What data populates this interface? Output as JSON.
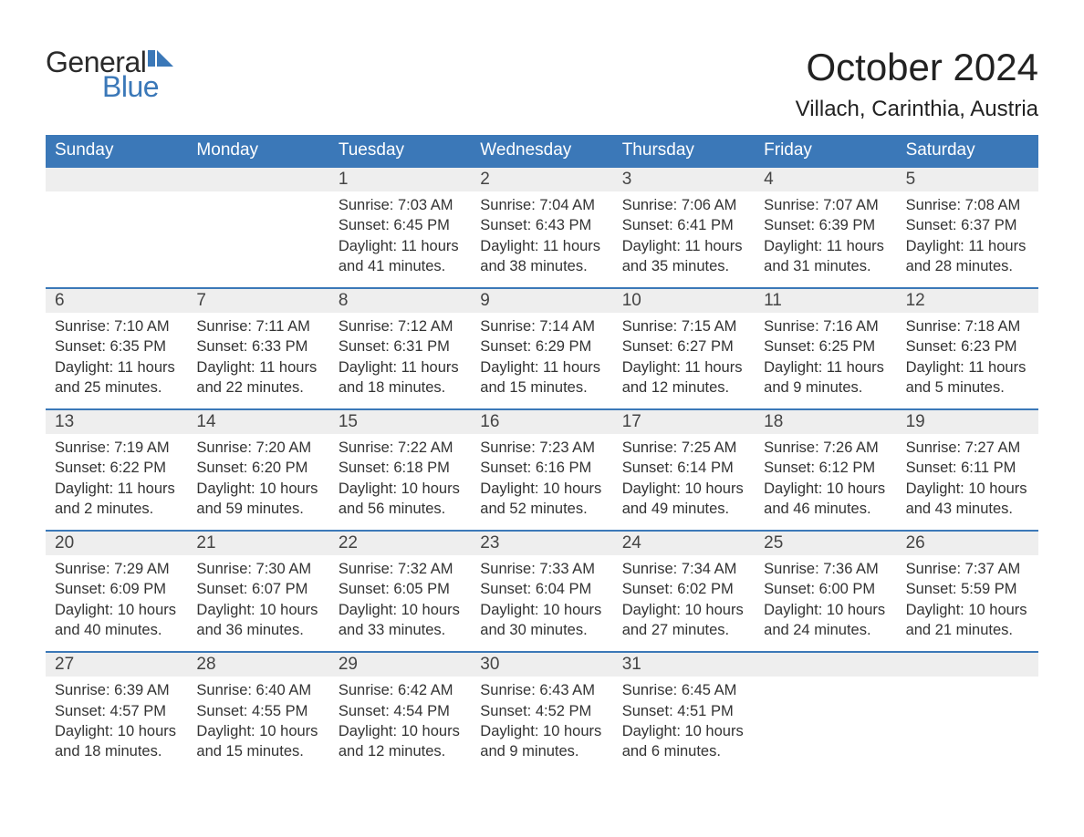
{
  "logo": {
    "text1": "General",
    "text2": "Blue"
  },
  "title": "October 2024",
  "location": "Villach, Carinthia, Austria",
  "colors": {
    "header_bg": "#3b78b8",
    "header_text": "#ffffff",
    "daynum_bg": "#eeeeee",
    "week_border": "#3b78b8",
    "body_text": "#333333",
    "logo_blue": "#3b78b8"
  },
  "typography": {
    "title_fontsize": 42,
    "location_fontsize": 24,
    "dayheader_fontsize": 19,
    "daynum_fontsize": 19,
    "dayinfo_fontsize": 16.5
  },
  "day_headers": [
    "Sunday",
    "Monday",
    "Tuesday",
    "Wednesday",
    "Thursday",
    "Friday",
    "Saturday"
  ],
  "weeks": [
    [
      {
        "num": "",
        "sunrise": "",
        "sunset": "",
        "daylight1": "",
        "daylight2": ""
      },
      {
        "num": "",
        "sunrise": "",
        "sunset": "",
        "daylight1": "",
        "daylight2": ""
      },
      {
        "num": "1",
        "sunrise": "Sunrise: 7:03 AM",
        "sunset": "Sunset: 6:45 PM",
        "daylight1": "Daylight: 11 hours",
        "daylight2": "and 41 minutes."
      },
      {
        "num": "2",
        "sunrise": "Sunrise: 7:04 AM",
        "sunset": "Sunset: 6:43 PM",
        "daylight1": "Daylight: 11 hours",
        "daylight2": "and 38 minutes."
      },
      {
        "num": "3",
        "sunrise": "Sunrise: 7:06 AM",
        "sunset": "Sunset: 6:41 PM",
        "daylight1": "Daylight: 11 hours",
        "daylight2": "and 35 minutes."
      },
      {
        "num": "4",
        "sunrise": "Sunrise: 7:07 AM",
        "sunset": "Sunset: 6:39 PM",
        "daylight1": "Daylight: 11 hours",
        "daylight2": "and 31 minutes."
      },
      {
        "num": "5",
        "sunrise": "Sunrise: 7:08 AM",
        "sunset": "Sunset: 6:37 PM",
        "daylight1": "Daylight: 11 hours",
        "daylight2": "and 28 minutes."
      }
    ],
    [
      {
        "num": "6",
        "sunrise": "Sunrise: 7:10 AM",
        "sunset": "Sunset: 6:35 PM",
        "daylight1": "Daylight: 11 hours",
        "daylight2": "and 25 minutes."
      },
      {
        "num": "7",
        "sunrise": "Sunrise: 7:11 AM",
        "sunset": "Sunset: 6:33 PM",
        "daylight1": "Daylight: 11 hours",
        "daylight2": "and 22 minutes."
      },
      {
        "num": "8",
        "sunrise": "Sunrise: 7:12 AM",
        "sunset": "Sunset: 6:31 PM",
        "daylight1": "Daylight: 11 hours",
        "daylight2": "and 18 minutes."
      },
      {
        "num": "9",
        "sunrise": "Sunrise: 7:14 AM",
        "sunset": "Sunset: 6:29 PM",
        "daylight1": "Daylight: 11 hours",
        "daylight2": "and 15 minutes."
      },
      {
        "num": "10",
        "sunrise": "Sunrise: 7:15 AM",
        "sunset": "Sunset: 6:27 PM",
        "daylight1": "Daylight: 11 hours",
        "daylight2": "and 12 minutes."
      },
      {
        "num": "11",
        "sunrise": "Sunrise: 7:16 AM",
        "sunset": "Sunset: 6:25 PM",
        "daylight1": "Daylight: 11 hours",
        "daylight2": "and 9 minutes."
      },
      {
        "num": "12",
        "sunrise": "Sunrise: 7:18 AM",
        "sunset": "Sunset: 6:23 PM",
        "daylight1": "Daylight: 11 hours",
        "daylight2": "and 5 minutes."
      }
    ],
    [
      {
        "num": "13",
        "sunrise": "Sunrise: 7:19 AM",
        "sunset": "Sunset: 6:22 PM",
        "daylight1": "Daylight: 11 hours",
        "daylight2": "and 2 minutes."
      },
      {
        "num": "14",
        "sunrise": "Sunrise: 7:20 AM",
        "sunset": "Sunset: 6:20 PM",
        "daylight1": "Daylight: 10 hours",
        "daylight2": "and 59 minutes."
      },
      {
        "num": "15",
        "sunrise": "Sunrise: 7:22 AM",
        "sunset": "Sunset: 6:18 PM",
        "daylight1": "Daylight: 10 hours",
        "daylight2": "and 56 minutes."
      },
      {
        "num": "16",
        "sunrise": "Sunrise: 7:23 AM",
        "sunset": "Sunset: 6:16 PM",
        "daylight1": "Daylight: 10 hours",
        "daylight2": "and 52 minutes."
      },
      {
        "num": "17",
        "sunrise": "Sunrise: 7:25 AM",
        "sunset": "Sunset: 6:14 PM",
        "daylight1": "Daylight: 10 hours",
        "daylight2": "and 49 minutes."
      },
      {
        "num": "18",
        "sunrise": "Sunrise: 7:26 AM",
        "sunset": "Sunset: 6:12 PM",
        "daylight1": "Daylight: 10 hours",
        "daylight2": "and 46 minutes."
      },
      {
        "num": "19",
        "sunrise": "Sunrise: 7:27 AM",
        "sunset": "Sunset: 6:11 PM",
        "daylight1": "Daylight: 10 hours",
        "daylight2": "and 43 minutes."
      }
    ],
    [
      {
        "num": "20",
        "sunrise": "Sunrise: 7:29 AM",
        "sunset": "Sunset: 6:09 PM",
        "daylight1": "Daylight: 10 hours",
        "daylight2": "and 40 minutes."
      },
      {
        "num": "21",
        "sunrise": "Sunrise: 7:30 AM",
        "sunset": "Sunset: 6:07 PM",
        "daylight1": "Daylight: 10 hours",
        "daylight2": "and 36 minutes."
      },
      {
        "num": "22",
        "sunrise": "Sunrise: 7:32 AM",
        "sunset": "Sunset: 6:05 PM",
        "daylight1": "Daylight: 10 hours",
        "daylight2": "and 33 minutes."
      },
      {
        "num": "23",
        "sunrise": "Sunrise: 7:33 AM",
        "sunset": "Sunset: 6:04 PM",
        "daylight1": "Daylight: 10 hours",
        "daylight2": "and 30 minutes."
      },
      {
        "num": "24",
        "sunrise": "Sunrise: 7:34 AM",
        "sunset": "Sunset: 6:02 PM",
        "daylight1": "Daylight: 10 hours",
        "daylight2": "and 27 minutes."
      },
      {
        "num": "25",
        "sunrise": "Sunrise: 7:36 AM",
        "sunset": "Sunset: 6:00 PM",
        "daylight1": "Daylight: 10 hours",
        "daylight2": "and 24 minutes."
      },
      {
        "num": "26",
        "sunrise": "Sunrise: 7:37 AM",
        "sunset": "Sunset: 5:59 PM",
        "daylight1": "Daylight: 10 hours",
        "daylight2": "and 21 minutes."
      }
    ],
    [
      {
        "num": "27",
        "sunrise": "Sunrise: 6:39 AM",
        "sunset": "Sunset: 4:57 PM",
        "daylight1": "Daylight: 10 hours",
        "daylight2": "and 18 minutes."
      },
      {
        "num": "28",
        "sunrise": "Sunrise: 6:40 AM",
        "sunset": "Sunset: 4:55 PM",
        "daylight1": "Daylight: 10 hours",
        "daylight2": "and 15 minutes."
      },
      {
        "num": "29",
        "sunrise": "Sunrise: 6:42 AM",
        "sunset": "Sunset: 4:54 PM",
        "daylight1": "Daylight: 10 hours",
        "daylight2": "and 12 minutes."
      },
      {
        "num": "30",
        "sunrise": "Sunrise: 6:43 AM",
        "sunset": "Sunset: 4:52 PM",
        "daylight1": "Daylight: 10 hours",
        "daylight2": "and 9 minutes."
      },
      {
        "num": "31",
        "sunrise": "Sunrise: 6:45 AM",
        "sunset": "Sunset: 4:51 PM",
        "daylight1": "Daylight: 10 hours",
        "daylight2": "and 6 minutes."
      },
      {
        "num": "",
        "sunrise": "",
        "sunset": "",
        "daylight1": "",
        "daylight2": ""
      },
      {
        "num": "",
        "sunrise": "",
        "sunset": "",
        "daylight1": "",
        "daylight2": ""
      }
    ]
  ]
}
